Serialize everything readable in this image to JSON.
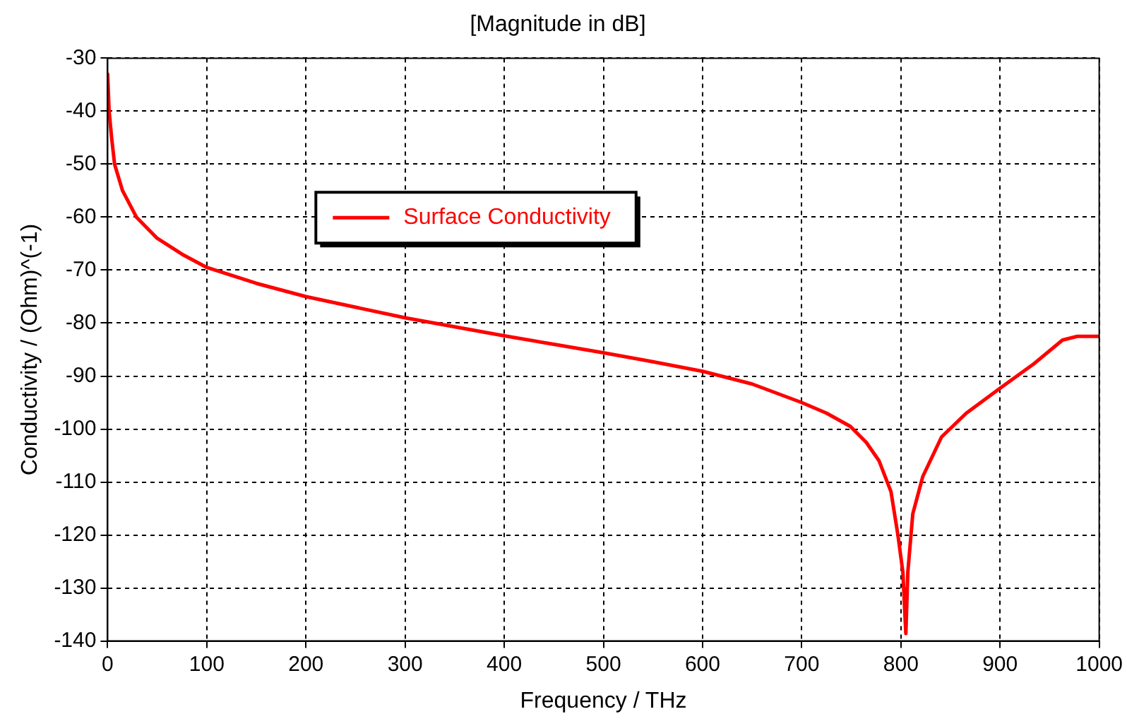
{
  "chart_data": {
    "type": "line",
    "title": "[Magnitude in dB]",
    "xlabel": "Frequency / THz",
    "ylabel": "Conductivity / (Ohm)^(-1)",
    "xlim": [
      0,
      1000
    ],
    "xticks": [
      0,
      100,
      200,
      300,
      400,
      500,
      600,
      700,
      800,
      900,
      1000
    ],
    "ylim": [
      -140,
      -30
    ],
    "yticks": [
      -140,
      -130,
      -120,
      -110,
      -100,
      -90,
      -80,
      -70,
      -60,
      -50,
      -40,
      -30
    ],
    "grid": true,
    "legend": "top left",
    "marker": "none",
    "line_style": "solid",
    "series": [
      {
        "name": "Surface Conductivity",
        "color": "#ff0000",
        "x": [
          0,
          1.5,
          4,
          7,
          15,
          29,
          50,
          75,
          100,
          150,
          200,
          250,
          300,
          350,
          400,
          450,
          500,
          550,
          600,
          650,
          700,
          725,
          749,
          765,
          778,
          790,
          797,
          802,
          805,
          807,
          812,
          822,
          841,
          866,
          900,
          934,
          963,
          978,
          1000
        ],
        "values": [
          -33,
          -40,
          -45,
          -50,
          -55,
          -60,
          -64,
          -67,
          -69.5,
          -72.5,
          -75,
          -77,
          -79,
          -80.7,
          -82.4,
          -84,
          -85.6,
          -87.3,
          -89.1,
          -91.5,
          -95,
          -97,
          -99.5,
          -102.5,
          -106,
          -111.8,
          -120,
          -127,
          -138.6,
          -127,
          -116,
          -109,
          -101.5,
          -97,
          -92.3,
          -87.7,
          -83.2,
          -82.5,
          -82.5
        ]
      }
    ]
  }
}
